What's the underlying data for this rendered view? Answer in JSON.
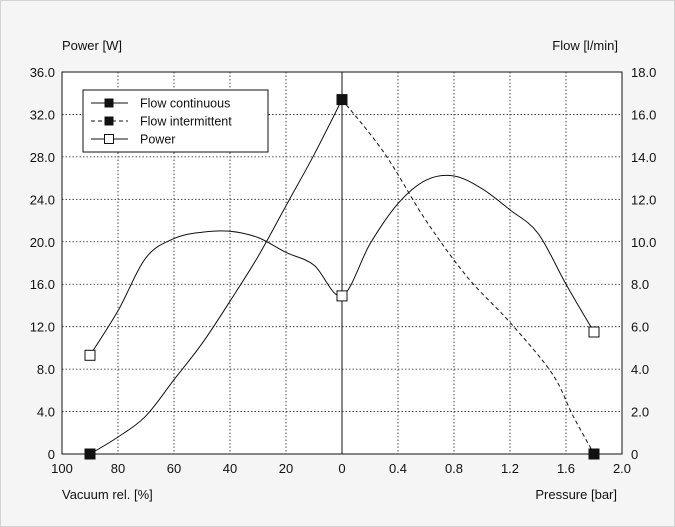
{
  "chart_data": {
    "type": "line",
    "title": "",
    "y_left_label": "Power [W]",
    "y_right_label": "Flow [l/min]",
    "x_left_label": "Vacuum rel. [%]",
    "x_right_label": "Pressure [bar]",
    "y_left_ticks": [
      "0",
      "4.0",
      "8.0",
      "12.0",
      "16.0",
      "20.0",
      "24.0",
      "28.0",
      "32.0",
      "36.0"
    ],
    "y_right_ticks": [
      "0",
      "2.0",
      "4.0",
      "6.0",
      "8.0",
      "10.0",
      "12.0",
      "14.0",
      "16.0",
      "18.0"
    ],
    "x_vacuum_ticks": [
      "100",
      "80",
      "60",
      "40",
      "20",
      "0"
    ],
    "x_pressure_ticks": [
      "0.4",
      "0.8",
      "1.2",
      "1.6",
      "2.0"
    ],
    "ylim_left": [
      0,
      36
    ],
    "ylim_right": [
      0,
      18
    ],
    "x_vacuum_range": [
      100,
      0
    ],
    "x_pressure_range": [
      0,
      2.0
    ],
    "grid": true,
    "legend_position": "top-left",
    "series": [
      {
        "name": "Flow continuous",
        "axis": "right",
        "style": "solid",
        "marker": "filled-square",
        "points": [
          {
            "x": "vac:90",
            "y": 0.0,
            "marker": true
          },
          {
            "x": "vac:80",
            "y": 0.8
          },
          {
            "x": "vac:70",
            "y": 1.8
          },
          {
            "x": "vac:60",
            "y": 3.5
          },
          {
            "x": "vac:50",
            "y": 5.2
          },
          {
            "x": "vac:40",
            "y": 7.2
          },
          {
            "x": "vac:30",
            "y": 9.3
          },
          {
            "x": "vac:20",
            "y": 11.7
          },
          {
            "x": "vac:10",
            "y": 14.1
          },
          {
            "x": "vac:0",
            "y": 16.7,
            "marker": true
          }
        ]
      },
      {
        "name": "Flow intermittent",
        "axis": "right",
        "style": "dashed",
        "marker": "filled-square",
        "points": [
          {
            "x": "prs:0",
            "y": 16.7
          },
          {
            "x": "prs:0.3",
            "y": 14.2
          },
          {
            "x": "prs:0.6",
            "y": 11.0
          },
          {
            "x": "prs:0.9",
            "y": 8.3
          },
          {
            "x": "prs:1.2",
            "y": 6.2
          },
          {
            "x": "prs:1.5",
            "y": 3.8
          },
          {
            "x": "prs:1.65",
            "y": 1.8
          },
          {
            "x": "prs:1.8",
            "y": 0.0,
            "marker": true
          }
        ]
      },
      {
        "name": "Power",
        "axis": "left",
        "style": "solid",
        "marker": "open-square",
        "points": [
          {
            "x": "vac:90",
            "y": 9.3,
            "marker": true
          },
          {
            "x": "vac:80",
            "y": 13.5
          },
          {
            "x": "vac:70",
            "y": 18.5
          },
          {
            "x": "vac:60",
            "y": 20.3
          },
          {
            "x": "vac:50",
            "y": 20.9
          },
          {
            "x": "vac:40",
            "y": 21.0
          },
          {
            "x": "vac:30",
            "y": 20.4
          },
          {
            "x": "vac:20",
            "y": 19.0
          },
          {
            "x": "vac:10",
            "y": 17.8
          },
          {
            "x": "vac:0",
            "y": 14.9,
            "marker": true
          },
          {
            "x": "prs:0.2",
            "y": 19.8
          },
          {
            "x": "prs:0.4",
            "y": 23.6
          },
          {
            "x": "prs:0.6",
            "y": 25.8
          },
          {
            "x": "prs:0.8",
            "y": 26.2
          },
          {
            "x": "prs:1.0",
            "y": 25.0
          },
          {
            "x": "prs:1.2",
            "y": 23.0
          },
          {
            "x": "prs:1.4",
            "y": 20.8
          },
          {
            "x": "prs:1.6",
            "y": 16.0
          },
          {
            "x": "prs:1.8",
            "y": 11.5,
            "marker": true
          }
        ]
      }
    ]
  }
}
